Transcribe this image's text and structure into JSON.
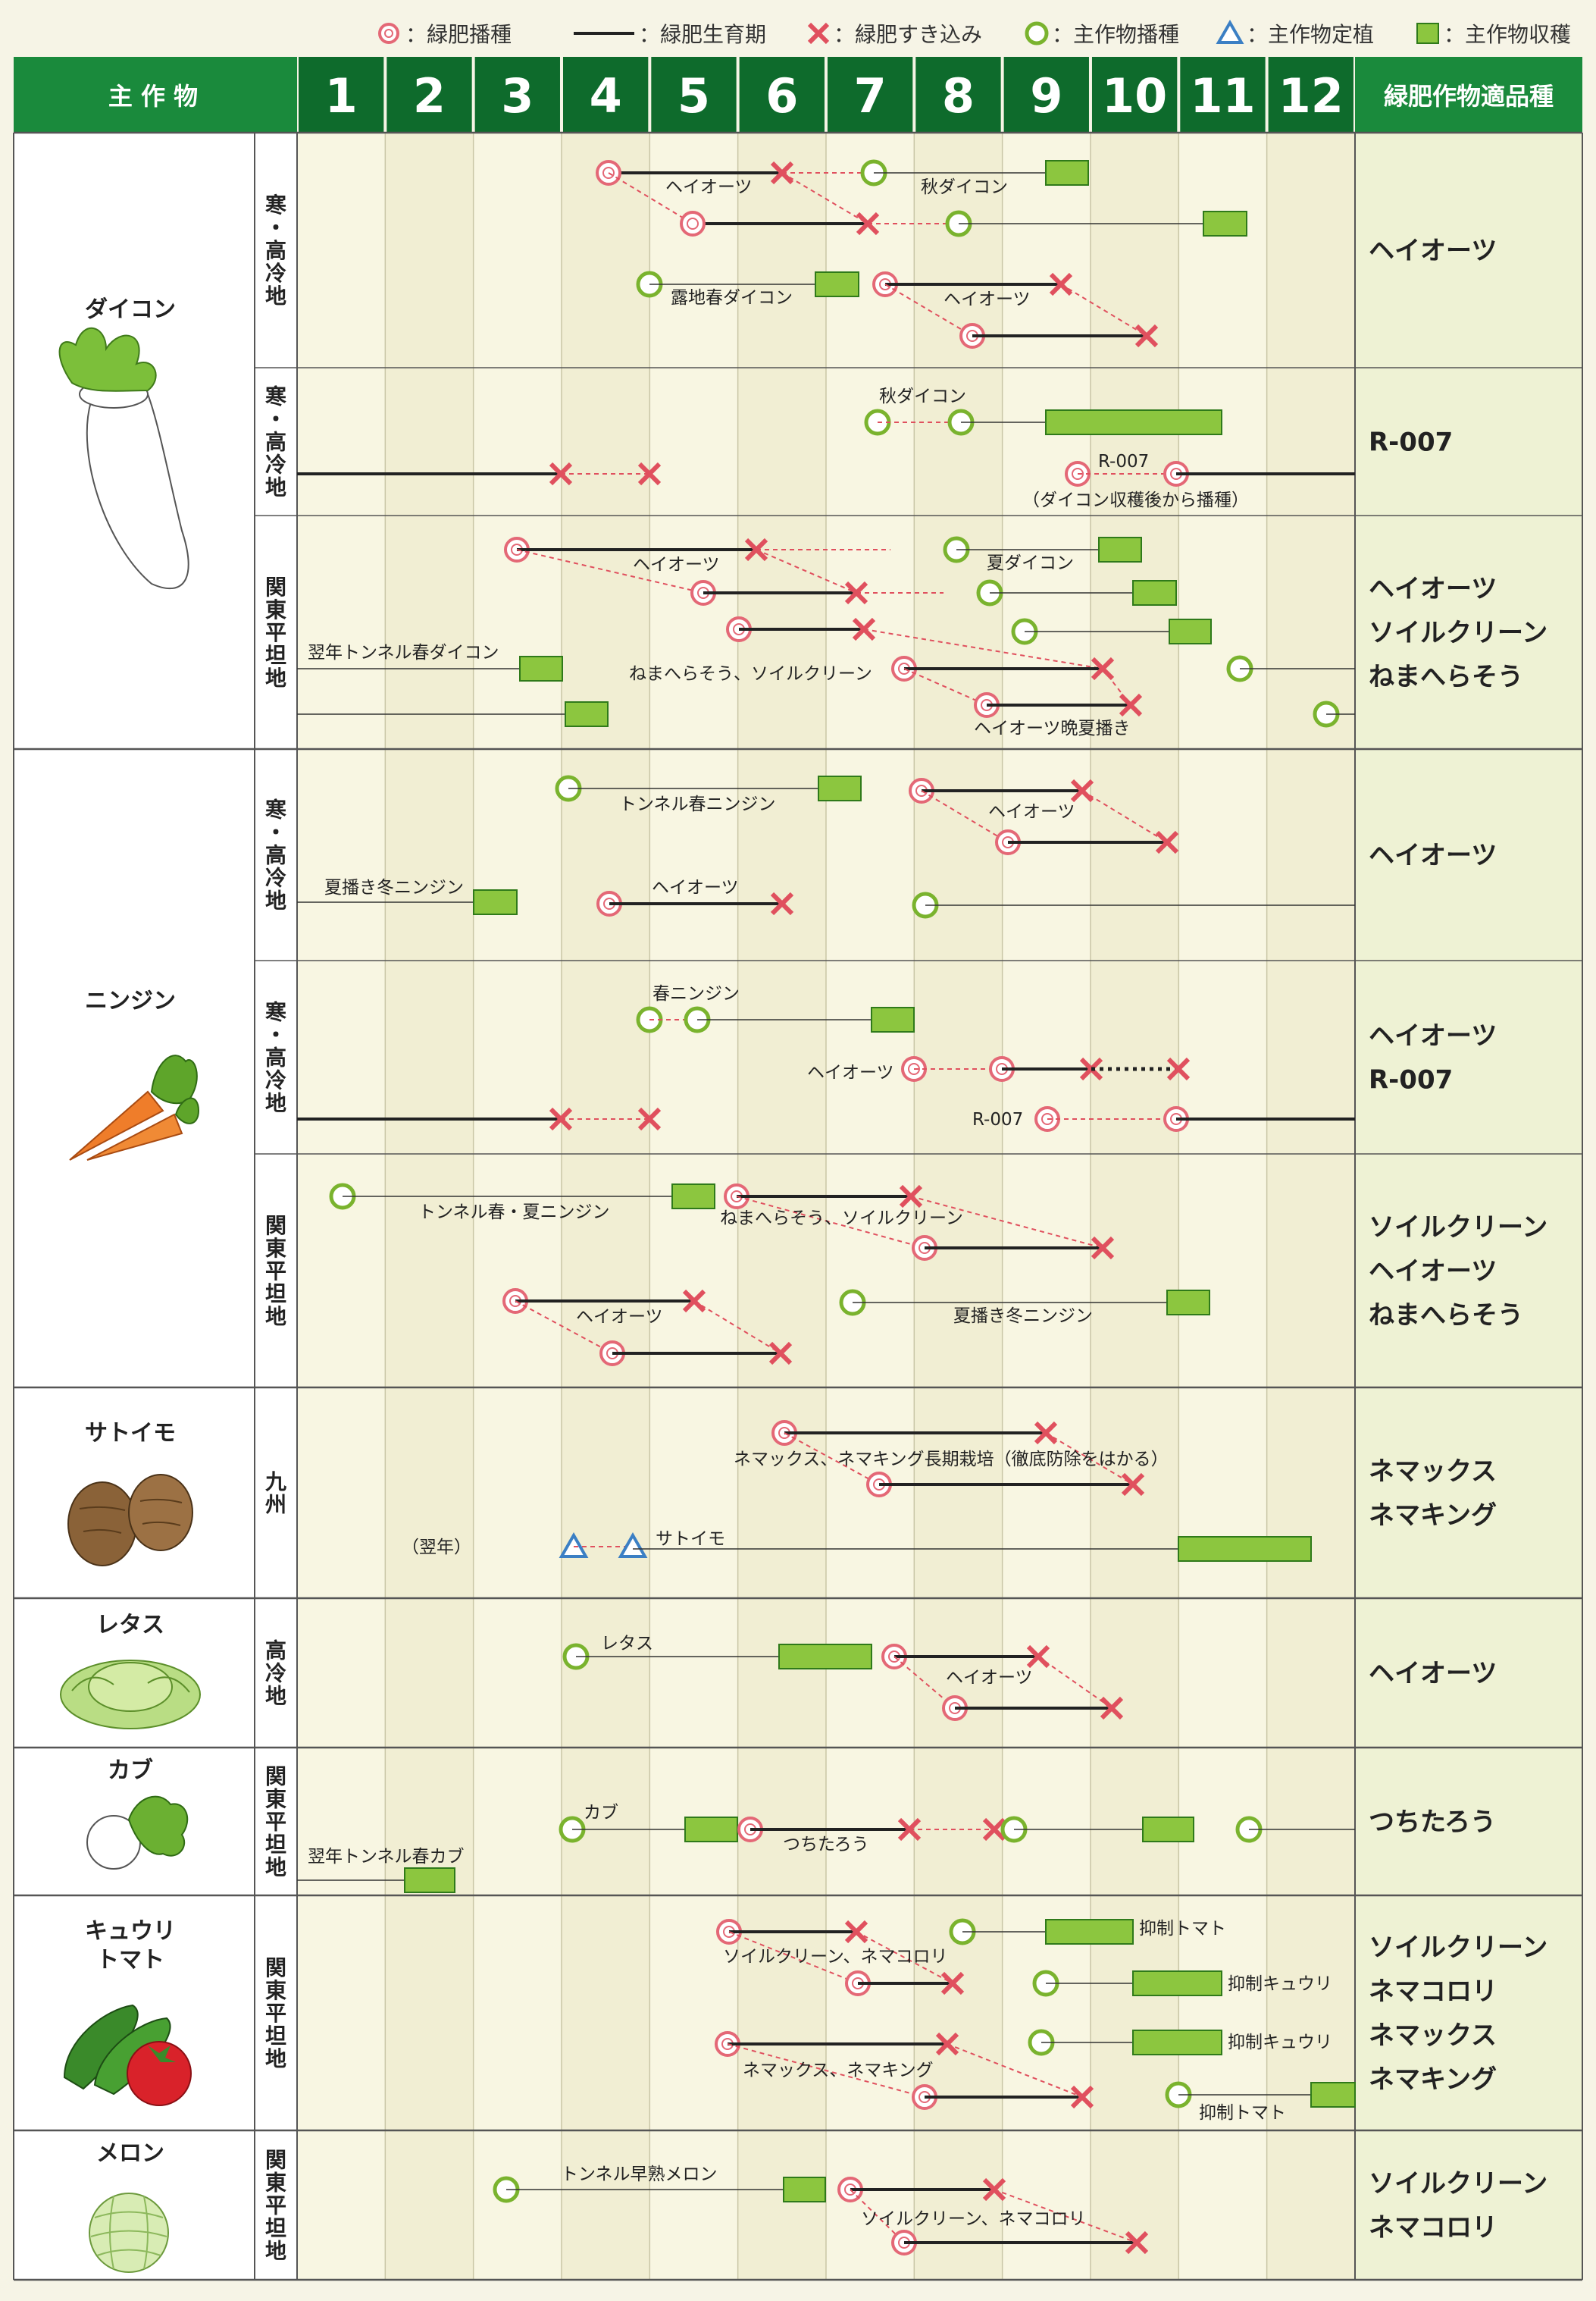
{
  "legend": {
    "green_manure_sowing": "：緑肥播種",
    "green_manure_growth": "：緑肥生育期",
    "green_manure_incorporation": "：緑肥すき込み",
    "main_crop_sowing": "：主作物播種",
    "main_crop_transplant": "：主作物定植",
    "main_crop_harvest": "：主作物収穫"
  },
  "header": {
    "crop_label": "主 作 物",
    "varieties_label": "緑肥作物適品種",
    "months": [
      "1",
      "2",
      "3",
      "4",
      "5",
      "6",
      "7",
      "8",
      "9",
      "10",
      "11",
      "12"
    ]
  },
  "colors": {
    "header_green": "#1a8a3c",
    "header_dark": "#0e6b2c",
    "harvest": "#8cc63f",
    "sow_red": "#e46876",
    "cross_red": "#e0505e",
    "main_sow_green": "#7ab32e",
    "transplant_blue": "#3b7fc4",
    "variety_bg": "#eef2d4"
  },
  "crops": [
    {
      "name": "ダイコン",
      "icon": "daikon-icon"
    },
    {
      "name": "ニンジン",
      "icon": "carrot-icon"
    },
    {
      "name": "サトイモ",
      "icon": "taro-icon"
    },
    {
      "name": "レタス",
      "icon": "lettuce-icon"
    },
    {
      "name": "カブ",
      "icon": "turnip-icon"
    },
    {
      "name": "キュウリ\nトマト",
      "icon": "cucumber-tomato-icon"
    },
    {
      "name": "メロン",
      "icon": "melon-icon"
    }
  ],
  "rows": [
    {
      "region": "寒・高冷地",
      "varieties": [
        "ヘイオーツ"
      ]
    },
    {
      "region": "寒・高冷地",
      "varieties": [
        "R-007"
      ]
    },
    {
      "region": "関東平坦地",
      "varieties": [
        "ヘイオーツ",
        "ソイルクリーン",
        "ねまへらそう"
      ]
    },
    {
      "region": "寒・高冷地",
      "varieties": [
        "ヘイオーツ"
      ]
    },
    {
      "region": "寒・高冷地",
      "varieties": [
        "ヘイオーツ",
        "R-007"
      ]
    },
    {
      "region": "関東平坦地",
      "varieties": [
        "ソイルクリーン",
        "ヘイオーツ",
        "ねまへらそう"
      ]
    },
    {
      "region": "九州",
      "varieties": [
        "ネマックス",
        "ネマキング"
      ]
    },
    {
      "region": "高冷地",
      "varieties": [
        "ヘイオーツ"
      ]
    },
    {
      "region": "関東平坦地",
      "varieties": [
        "つちたろう"
      ]
    },
    {
      "region": "関東平坦地",
      "varieties": [
        "ソイルクリーン",
        "ネマコロリ",
        "ネマックス",
        "ネマキング"
      ]
    },
    {
      "region": "関東平坦地",
      "varieties": [
        "ソイルクリーン",
        "ネマコロリ"
      ]
    }
  ],
  "annotations": [
    "ヘイオーツ",
    "秋ダイコン",
    "露地春ダイコン",
    "ヘイオーツ",
    "秋ダイコン",
    "R-007",
    "（ダイコン収穫後から播種）",
    "ヘイオーツ",
    "夏ダイコン",
    "翌年トンネル春ダイコン",
    "ねまへらそう、ソイルクリーン",
    "ヘイオーツ晩夏播き",
    "トンネル春ニンジン",
    "ヘイオーツ",
    "夏播き冬ニンジン",
    "ヘイオーツ",
    "春ニンジン",
    "ヘイオーツ",
    "R-007",
    "トンネル春・夏ニンジン",
    "ねまへらそう、ソイルクリーン",
    "ヘイオーツ",
    "夏播き冬ニンジン",
    "ネマックス、ネマキング長期栽培（徹底防除をはかる）",
    "（翌年）",
    "サトイモ",
    "レタス",
    "ヘイオーツ",
    "カブ",
    "つちたろう",
    "翌年トンネル春カブ",
    "抑制トマト",
    "ソイルクリーン、ネマコロリ",
    "抑制キュウリ",
    "抑制キュウリ",
    "ネマックス、ネマキング",
    "抑制トマト",
    "トンネル早熟メロン",
    "ソイルクリーン、ネマコロリ"
  ]
}
